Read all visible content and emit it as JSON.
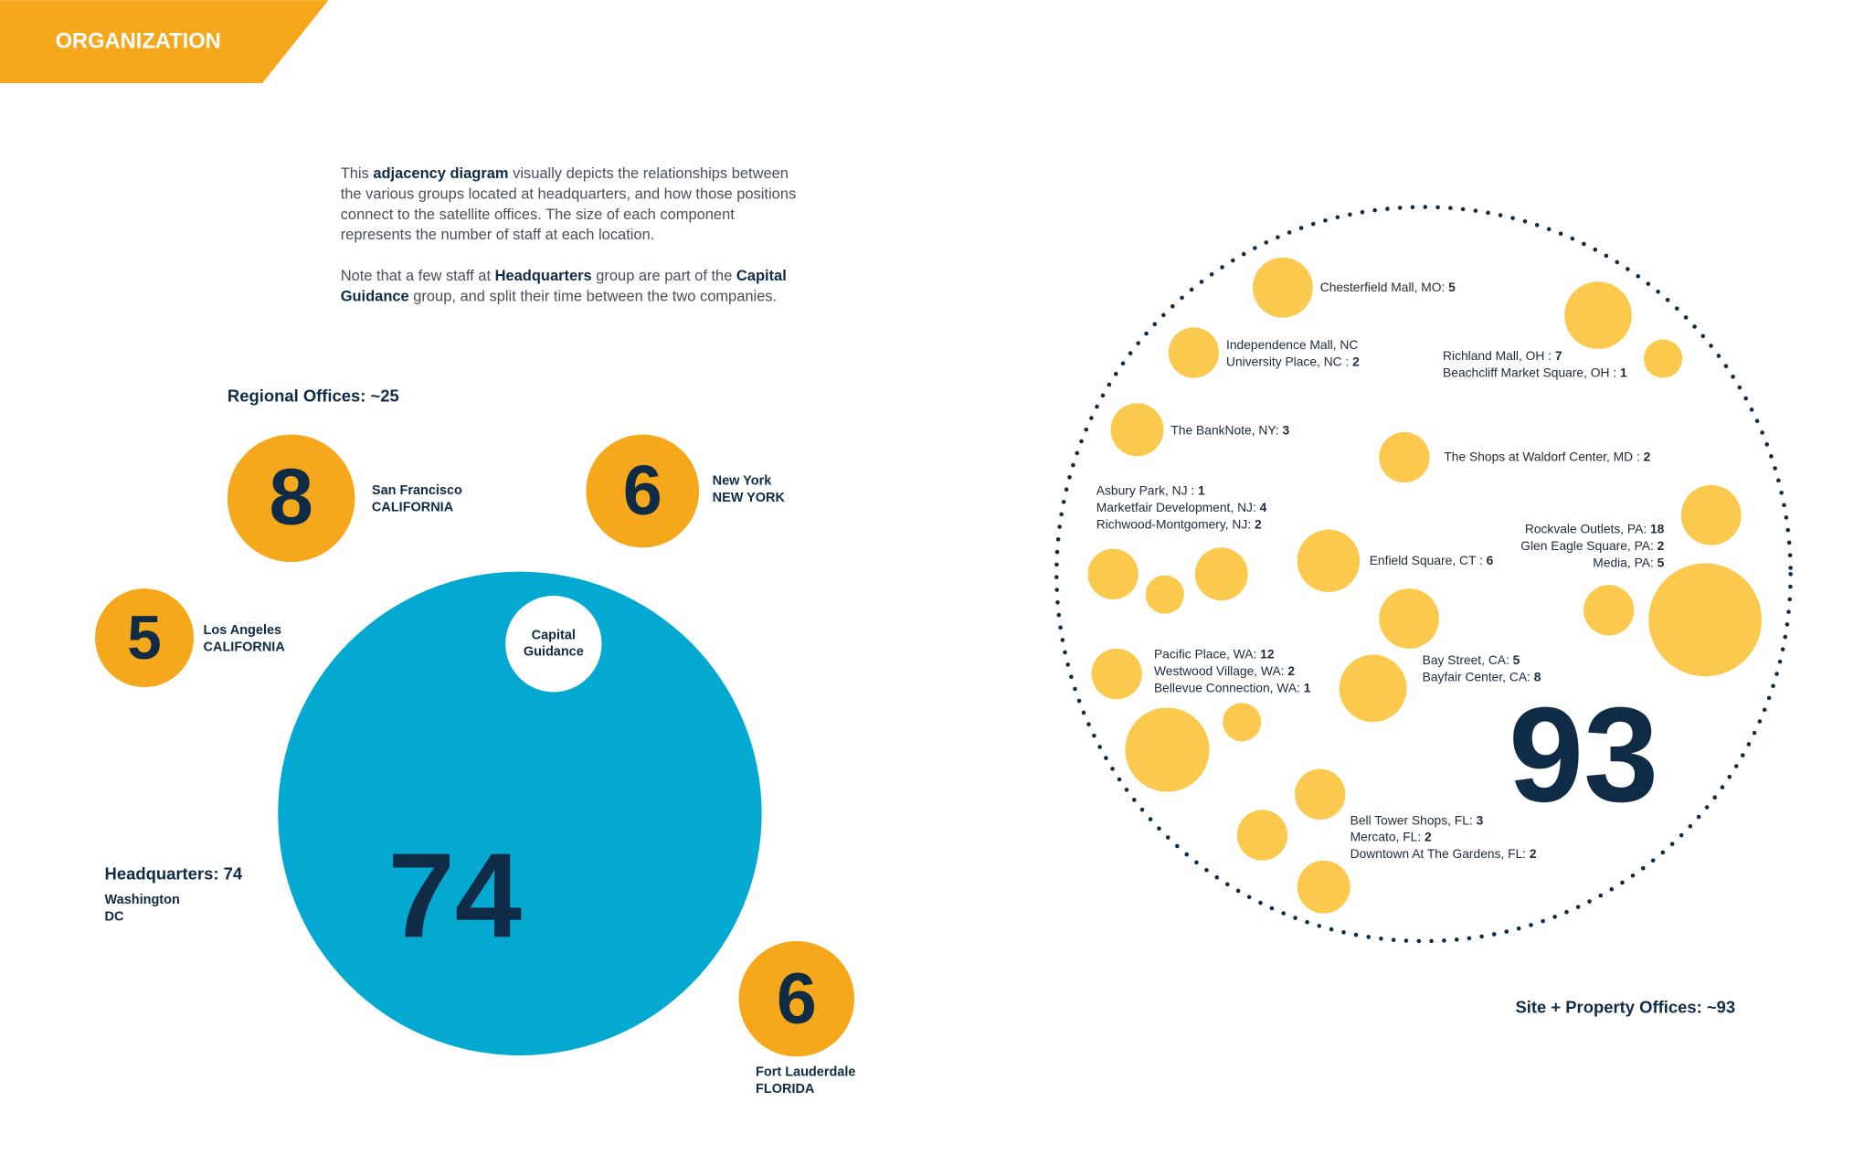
{
  "header": {
    "title": "ORGANIZATION"
  },
  "intro": [
    [
      [
        "This ",
        {
          "text": "adjacency diagram",
          "bold": true
        },
        " visually depicts the relationships between"
      ],
      [
        "the various groups located at headquarters, and how those positions"
      ],
      [
        "connect to the satellite offices. The size of each component"
      ],
      [
        "represents the number of staff at each location."
      ]
    ],
    [
      [
        "Note that a few staff at ",
        {
          "text": "Headquarters",
          "bold": true
        },
        " group are part of the ",
        {
          "text": "Capital",
          "bold": true
        }
      ],
      [
        {
          "text": "Guidance",
          "bold": true
        },
        " group, and split their time between the two companies."
      ]
    ]
  ],
  "regional": {
    "title": "Regional Offices: ~25",
    "offices": [
      {
        "count": "8",
        "city": "San Francisco",
        "state": "CALIFORNIA"
      },
      {
        "count": "6",
        "city": "New York",
        "state": "NEW YORK"
      },
      {
        "count": "5",
        "city": "Los Angeles",
        "state": "CALIFORNIA"
      },
      {
        "count": "6",
        "city": "Fort Lauderdale",
        "state": "FLORIDA"
      }
    ]
  },
  "headquarters": {
    "title": "Headquarters: 74",
    "city": "Washington",
    "state": "DC",
    "count": "74",
    "inner": [
      "Capital",
      "Guidance"
    ]
  },
  "sites": {
    "title": "Site + Property Offices: ~93",
    "total": "93",
    "groups": [
      [
        {
          "name": "Chesterfield Mall, MO: ",
          "count": "5"
        }
      ],
      [
        {
          "name": "Independence Mall, NC"
        },
        {
          "name": "University Place, NC : ",
          "count": "2"
        }
      ],
      [
        {
          "name": "Richland Mall, OH : ",
          "count": "7"
        },
        {
          "name": "Beachcliff Market Square, OH : ",
          "count": "1"
        }
      ],
      [
        {
          "name": "The BankNote, NY: ",
          "count": "3"
        }
      ],
      [
        {
          "name": "The Shops at Waldorf Center, MD : ",
          "count": "2"
        }
      ],
      [
        {
          "name": "Asbury Park, NJ : ",
          "count": "1"
        },
        {
          "name": "Marketfair Development, NJ: ",
          "count": "4"
        },
        {
          "name": "Richwood-Montgomery, NJ: ",
          "count": "2"
        }
      ],
      [
        {
          "name": "Rockvale Outlets, PA: ",
          "count": "18"
        },
        {
          "name": "Glen Eagle Square, PA: ",
          "count": "2"
        },
        {
          "name": "Media, PA: ",
          "count": "5"
        }
      ],
      [
        {
          "name": "Enfield Square, CT : ",
          "count": "6"
        }
      ],
      [
        {
          "name": "Pacific Place, WA: ",
          "count": "12"
        },
        {
          "name": "Westwood Village, WA: ",
          "count": "2"
        },
        {
          "name": "Bellevue Connection, WA: ",
          "count": "1"
        }
      ],
      [
        {
          "name": "Bay Street, CA: ",
          "count": "5"
        },
        {
          "name": "Bayfair Center, CA: ",
          "count": "8"
        }
      ],
      [
        {
          "name": "Bell Tower Shops, FL: ",
          "count": "3"
        },
        {
          "name": "Mercato, FL: ",
          "count": "2"
        },
        {
          "name": "Downtown At The Gardens, FL: ",
          "count": "2"
        }
      ]
    ]
  }
}
